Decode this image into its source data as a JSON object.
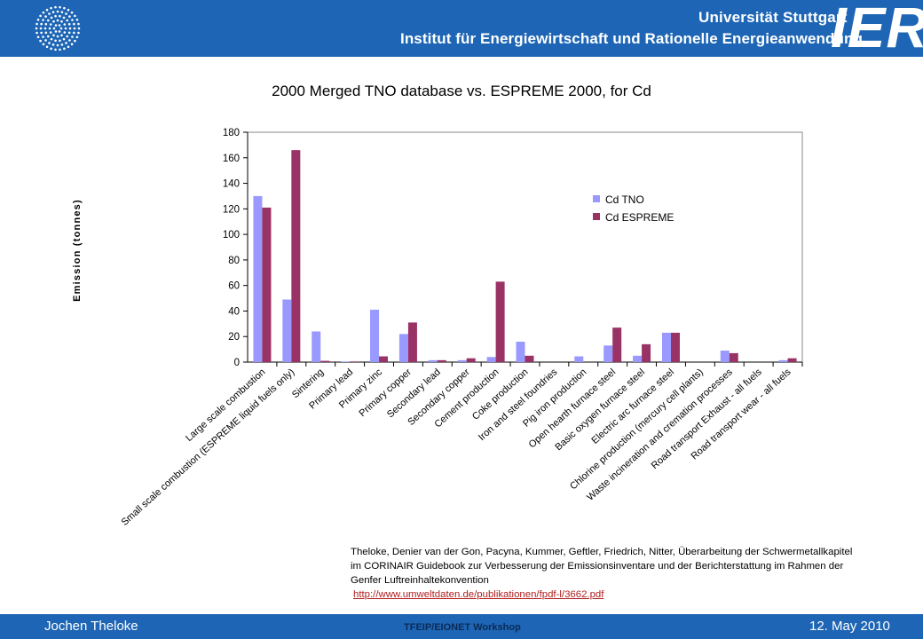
{
  "header": {
    "university": "Universität Stuttgart",
    "institute": "Institut für Energiewirtschaft und Rationelle Energieanwendung",
    "logo_text": "IER",
    "emblem_icon": "university-emblem-icon"
  },
  "footer": {
    "author": "Jochen Theloke",
    "event": "TFEIP/EIONET Workshop",
    "date": "12. May 2010"
  },
  "citation": {
    "text": "Theloke, Denier van der Gon, Pacyna, Kummer, Geftler, Friedrich, Nitter, Überarbeitung der Schwermetallkapitel im CORINAIR Guidebook zur Verbesserung der Emissionsinventare und der Berichterstattung im Rahmen der Genfer Luftreinhaltekonvention",
    "url": "http://www.umweltdaten.de/publikationen/fpdf-l/3662.pdf"
  },
  "colors": {
    "header_blue": "#1e66b5",
    "tno": "#9999ff",
    "espreme": "#993366"
  },
  "chart_data": {
    "type": "bar",
    "title": "2000 Merged TNO database vs. ESPREME 2000, for Cd",
    "xlabel": "",
    "ylabel": "Emission (tonnes)",
    "ylim": [
      0,
      180
    ],
    "yticks": [
      "0",
      "20",
      "40",
      "60",
      "80",
      "100",
      "120",
      "140",
      "160",
      "180"
    ],
    "grid": false,
    "legend_position": "top-right",
    "categories": [
      "Large scale combustion",
      "Small scale combustion (ESPREME liquid fuels only)",
      "Sintering",
      "Primary lead",
      "Primary zinc",
      "Primary copper",
      "Secondary lead",
      "Secondary copper",
      "Cement production",
      "Coke production",
      "Iron and steel foundries",
      "Pig iron production",
      "Open hearth furnace steel",
      "Basic oxygen furnace steel",
      "Electric arc furnace steel",
      "Chlorine production (mercury cell plants)",
      "Waste incineration and cremation processes",
      "Road transport Exhaust - all fuels",
      "Road transport wear - all fuels"
    ],
    "series": [
      {
        "name": "Cd TNO",
        "color": "#9999ff",
        "values": [
          130,
          49,
          24,
          0.5,
          41,
          22,
          1.5,
          1.5,
          4,
          16,
          0,
          4.5,
          13,
          5,
          23,
          0,
          9,
          0,
          1.5
        ]
      },
      {
        "name": "Cd ESPREME",
        "color": "#993366",
        "values": [
          121,
          166,
          1,
          0.5,
          4.5,
          31,
          1.5,
          3,
          63,
          5,
          0,
          0,
          27,
          14,
          23,
          0,
          7,
          0,
          3
        ]
      }
    ]
  }
}
